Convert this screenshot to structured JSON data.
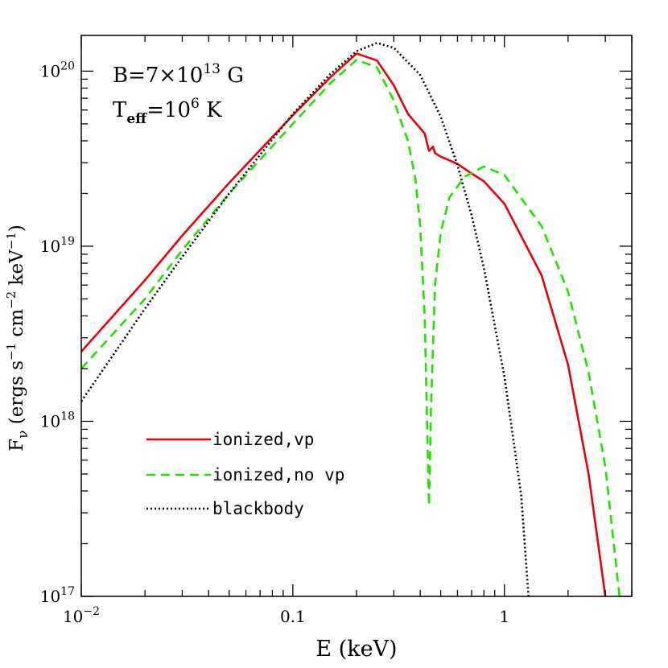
{
  "chart_data": {
    "type": "line",
    "xscale": "log",
    "yscale": "log",
    "xlim": [
      0.01,
      4.0
    ],
    "ylim": [
      1e+17,
      1.6e+20
    ],
    "xlabel": "E (keV)",
    "ylabel": {
      "main": "F",
      "sub": "ν",
      "units_open": " (ergs s",
      "exp1": "−1",
      "mid1": " cm",
      "exp2": "−2",
      "mid2": " keV",
      "exp3": "−1",
      "units_close": ")"
    },
    "x_ticks": [
      {
        "value": 0.01,
        "base": "10",
        "exp": "−2"
      },
      {
        "value": 0.1,
        "base": "0.1",
        "exp": ""
      },
      {
        "value": 1,
        "base": "1",
        "exp": ""
      }
    ],
    "y_ticks": [
      {
        "value": 1e+17,
        "base": "10",
        "exp": "17"
      },
      {
        "value": 1e+18,
        "base": "10",
        "exp": "18"
      },
      {
        "value": 1e+19,
        "base": "10",
        "exp": "19"
      },
      {
        "value": 1e+20,
        "base": "10",
        "exp": "20"
      }
    ],
    "annotations": {
      "b_field": {
        "pre": "B=7×10",
        "exp": "13",
        "post": " G"
      },
      "t_eff": {
        "main": "T",
        "sub": "eff",
        "mid": "=10",
        "exp": "6",
        "post": " K"
      }
    },
    "legend_position": "bottom-left",
    "series": [
      {
        "name": "ionized,vp",
        "color": "#e8000b",
        "style": "solid",
        "points": [
          [
            0.01,
            2.5e+18
          ],
          [
            0.02,
            6.4e+18
          ],
          [
            0.03,
            1.15e+19
          ],
          [
            0.05,
            2.3e+19
          ],
          [
            0.1,
            5.6e+19
          ],
          [
            0.15,
            9.2e+19
          ],
          [
            0.2,
            1.26e+20
          ],
          [
            0.25,
            1.15e+20
          ],
          [
            0.3,
            8.3e+19
          ],
          [
            0.35,
            5.7e+19
          ],
          [
            0.42,
            4.4e+19
          ],
          [
            0.44,
            3.5e+19
          ],
          [
            0.46,
            3.7e+19
          ],
          [
            0.47,
            3.4e+19
          ],
          [
            0.5,
            3.25e+19
          ],
          [
            0.6,
            2.95e+19
          ],
          [
            0.7,
            2.6e+19
          ],
          [
            0.8,
            2.35e+19
          ],
          [
            1.0,
            1.75e+19
          ],
          [
            1.5,
            6.8e+18
          ],
          [
            2.0,
            2.1e+18
          ],
          [
            2.5,
            5e+17
          ],
          [
            3.0,
            1e+17
          ]
        ]
      },
      {
        "name": "ionized,no vp",
        "color": "#22e000",
        "style": "dashed",
        "points": [
          [
            0.01,
            2e+18
          ],
          [
            0.02,
            5e+18
          ],
          [
            0.03,
            9.5e+18
          ],
          [
            0.05,
            2e+19
          ],
          [
            0.1,
            5e+19
          ],
          [
            0.15,
            8.5e+19
          ],
          [
            0.2,
            1.16e+20
          ],
          [
            0.25,
            1.05e+20
          ],
          [
            0.3,
            6.8e+19
          ],
          [
            0.35,
            4e+19
          ],
          [
            0.38,
            2.4e+19
          ],
          [
            0.4,
            1.3e+19
          ],
          [
            0.42,
            4e+18
          ],
          [
            0.44,
            3.3e+17
          ],
          [
            0.45,
            1.2e+18
          ],
          [
            0.47,
            6e+18
          ],
          [
            0.5,
            1.2e+19
          ],
          [
            0.55,
            1.9e+19
          ],
          [
            0.65,
            2.5e+19
          ],
          [
            0.8,
            2.85e+19
          ],
          [
            1.0,
            2.55e+19
          ],
          [
            1.5,
            1.3e+19
          ],
          [
            2.0,
            5.5e+18
          ],
          [
            2.5,
            1.9e+18
          ],
          [
            3.0,
            5.5e+17
          ],
          [
            3.5,
            1e+17
          ]
        ]
      },
      {
        "name": "blackbody",
        "color": "#000000",
        "style": "dotted",
        "points": [
          [
            0.01,
            1.3e+18
          ],
          [
            0.02,
            4.4e+18
          ],
          [
            0.03,
            8.7e+18
          ],
          [
            0.05,
            2e+19
          ],
          [
            0.1,
            5.7e+19
          ],
          [
            0.15,
            9.6e+19
          ],
          [
            0.2,
            1.3e+20
          ],
          [
            0.25,
            1.45e+20
          ],
          [
            0.3,
            1.36e+20
          ],
          [
            0.4,
            9.5e+19
          ],
          [
            0.5,
            5.5e+19
          ],
          [
            0.6,
            2.9e+19
          ],
          [
            0.7,
            1.5e+19
          ],
          [
            0.8,
            7.5e+18
          ],
          [
            1.0,
            1.8e+18
          ],
          [
            1.2,
            3.8e+17
          ],
          [
            1.3,
            1e+17
          ]
        ]
      }
    ]
  }
}
